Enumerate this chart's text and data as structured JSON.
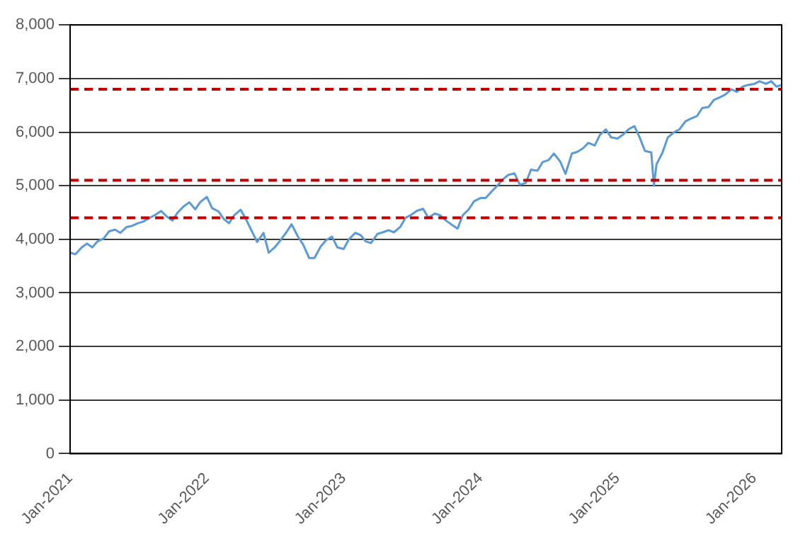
{
  "chart_data": {
    "type": "line",
    "x": [
      "2021-01-01",
      "2021-01-15",
      "2021-02-01",
      "2021-02-15",
      "2021-03-01",
      "2021-03-15",
      "2021-04-01",
      "2021-04-15",
      "2021-05-01",
      "2021-05-15",
      "2021-06-01",
      "2021-06-15",
      "2021-07-01",
      "2021-07-15",
      "2021-08-01",
      "2021-08-15",
      "2021-09-01",
      "2021-09-15",
      "2021-10-01",
      "2021-10-15",
      "2021-11-01",
      "2021-11-15",
      "2021-12-01",
      "2021-12-15",
      "2022-01-01",
      "2022-01-15",
      "2022-02-01",
      "2022-02-15",
      "2022-03-01",
      "2022-03-15",
      "2022-04-01",
      "2022-04-15",
      "2022-05-01",
      "2022-05-15",
      "2022-06-01",
      "2022-06-15",
      "2022-07-01",
      "2022-07-15",
      "2022-08-01",
      "2022-08-15",
      "2022-09-01",
      "2022-09-15",
      "2022-10-01",
      "2022-10-15",
      "2022-11-01",
      "2022-11-15",
      "2022-12-01",
      "2022-12-15",
      "2023-01-01",
      "2023-01-15",
      "2023-02-01",
      "2023-02-15",
      "2023-03-01",
      "2023-03-15",
      "2023-04-01",
      "2023-04-15",
      "2023-05-01",
      "2023-05-15",
      "2023-06-01",
      "2023-06-15",
      "2023-07-01",
      "2023-07-15",
      "2023-08-01",
      "2023-08-15",
      "2023-09-01",
      "2023-09-15",
      "2023-10-01",
      "2023-10-15",
      "2023-11-01",
      "2023-11-15",
      "2023-12-01",
      "2023-12-15",
      "2024-01-01",
      "2024-01-15",
      "2024-02-01",
      "2024-02-15",
      "2024-03-01",
      "2024-03-15",
      "2024-04-01",
      "2024-04-15",
      "2024-05-01",
      "2024-05-15",
      "2024-06-01",
      "2024-06-15",
      "2024-07-01",
      "2024-07-15",
      "2024-08-01",
      "2024-08-15",
      "2024-09-01",
      "2024-09-15",
      "2024-10-01",
      "2024-10-15",
      "2024-11-01",
      "2024-11-15",
      "2024-12-01",
      "2024-12-15",
      "2025-01-01",
      "2025-01-15",
      "2025-02-01",
      "2025-02-15",
      "2025-03-01",
      "2025-03-15",
      "2025-04-01",
      "2025-04-08",
      "2025-04-15",
      "2025-05-01",
      "2025-05-15",
      "2025-06-01",
      "2025-06-15",
      "2025-07-01",
      "2025-07-15",
      "2025-08-01",
      "2025-08-15",
      "2025-09-01",
      "2025-09-15",
      "2025-10-01",
      "2025-10-15",
      "2025-11-01",
      "2025-11-15",
      "2025-12-01",
      "2025-12-15",
      "2026-01-01",
      "2026-01-15",
      "2026-02-01",
      "2026-02-15",
      "2026-03-01",
      "2026-03-15"
    ],
    "series": [
      {
        "color": "#5b9bd5",
        "values": [
          3750,
          3720,
          3850,
          3920,
          3850,
          3960,
          4020,
          4150,
          4180,
          4120,
          4230,
          4250,
          4300,
          4330,
          4400,
          4450,
          4530,
          4430,
          4350,
          4500,
          4620,
          4690,
          4560,
          4700,
          4790,
          4580,
          4520,
          4380,
          4300,
          4450,
          4550,
          4380,
          4150,
          3950,
          4120,
          3750,
          3850,
          3970,
          4130,
          4280,
          4050,
          3900,
          3650,
          3650,
          3870,
          3980,
          4050,
          3850,
          3820,
          4000,
          4120,
          4080,
          3960,
          3930,
          4100,
          4130,
          4170,
          4130,
          4230,
          4400,
          4460,
          4530,
          4570,
          4400,
          4480,
          4450,
          4350,
          4280,
          4200,
          4450,
          4560,
          4710,
          4770,
          4770,
          4900,
          5000,
          5120,
          5200,
          5230,
          5020,
          5050,
          5300,
          5280,
          5440,
          5480,
          5600,
          5450,
          5220,
          5600,
          5630,
          5700,
          5800,
          5750,
          5950,
          6050,
          5900,
          5880,
          5950,
          6060,
          6110,
          5900,
          5650,
          5620,
          5000,
          5400,
          5620,
          5900,
          6000,
          6050,
          6200,
          6250,
          6300,
          6450,
          6470,
          6600,
          6650,
          6700,
          6800,
          6750,
          6850,
          6880,
          6900,
          6950,
          6900,
          6950,
          6850,
          6880
        ]
      }
    ],
    "xlim": [
      "2021-01-01",
      "2026-03-15"
    ],
    "xticks": [
      {
        "value": "2021-01-01",
        "label": "Jan-2021"
      },
      {
        "value": "2022-01-01",
        "label": "Jan-2022"
      },
      {
        "value": "2023-01-01",
        "label": "Jan-2023"
      },
      {
        "value": "2024-01-01",
        "label": "Jan-2024"
      },
      {
        "value": "2025-01-01",
        "label": "Jan-2025"
      },
      {
        "value": "2026-01-01",
        "label": "Jan-2026"
      }
    ],
    "ylim": [
      0,
      8000
    ],
    "yticks": [
      {
        "value": 0,
        "label": "0"
      },
      {
        "value": 1000,
        "label": "1,000"
      },
      {
        "value": 2000,
        "label": "2,000"
      },
      {
        "value": 3000,
        "label": "3,000"
      },
      {
        "value": 4000,
        "label": "4,000"
      },
      {
        "value": 5000,
        "label": "5,000"
      },
      {
        "value": 6000,
        "label": "6,000"
      },
      {
        "value": 7000,
        "label": "7,000"
      },
      {
        "value": 8000,
        "label": "8,000"
      }
    ],
    "ref_lines": [
      {
        "axis": "y",
        "value": 6800,
        "color": "#c00000",
        "line_style": "dashed"
      },
      {
        "axis": "y",
        "value": 5100,
        "color": "#c00000",
        "line_style": "dashed"
      },
      {
        "axis": "y",
        "value": 4400,
        "color": "#c00000",
        "line_style": "dashed"
      }
    ],
    "grid": "y",
    "legend": false,
    "marker": "none",
    "line_style": "solid"
  }
}
